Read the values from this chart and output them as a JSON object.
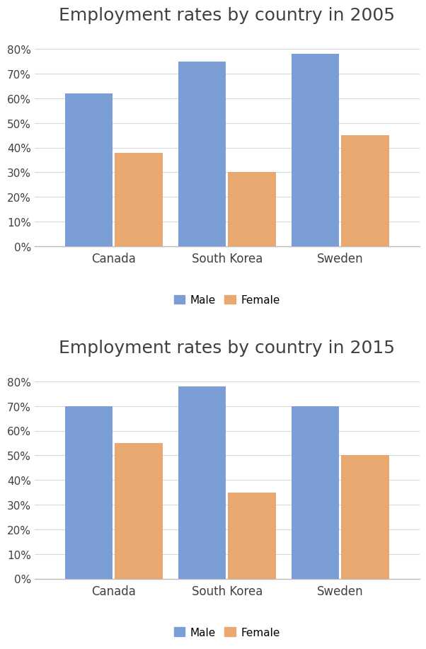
{
  "chart2005": {
    "title": "Employment rates by country in 2005",
    "countries": [
      "Canada",
      "South Korea",
      "Sweden"
    ],
    "male": [
      0.62,
      0.75,
      0.78
    ],
    "female": [
      0.38,
      0.3,
      0.45
    ]
  },
  "chart2015": {
    "title": "Employment rates by country in 2015",
    "countries": [
      "Canada",
      "South Korea",
      "Sweden"
    ],
    "male": [
      0.7,
      0.78,
      0.7
    ],
    "female": [
      0.55,
      0.35,
      0.5
    ]
  },
  "male_color": "#7B9FD4",
  "female_color": "#E8A870",
  "bar_width": 0.42,
  "bar_gap": 0.02,
  "yticks": [
    0.0,
    0.1,
    0.2,
    0.3,
    0.4,
    0.5,
    0.6,
    0.7,
    0.8
  ],
  "ytick_labels": [
    "0%",
    "10%",
    "20%",
    "30%",
    "40%",
    "50%",
    "60%",
    "70%",
    "80%"
  ],
  "legend_labels": [
    "Male",
    "Female"
  ],
  "background_color": "#ffffff",
  "title_fontsize": 18,
  "tick_fontsize": 11,
  "legend_fontsize": 11,
  "country_fontsize": 12,
  "grid_color": "#d8d8d8",
  "axis_color": "#bbbbbb",
  "text_color": "#404040"
}
